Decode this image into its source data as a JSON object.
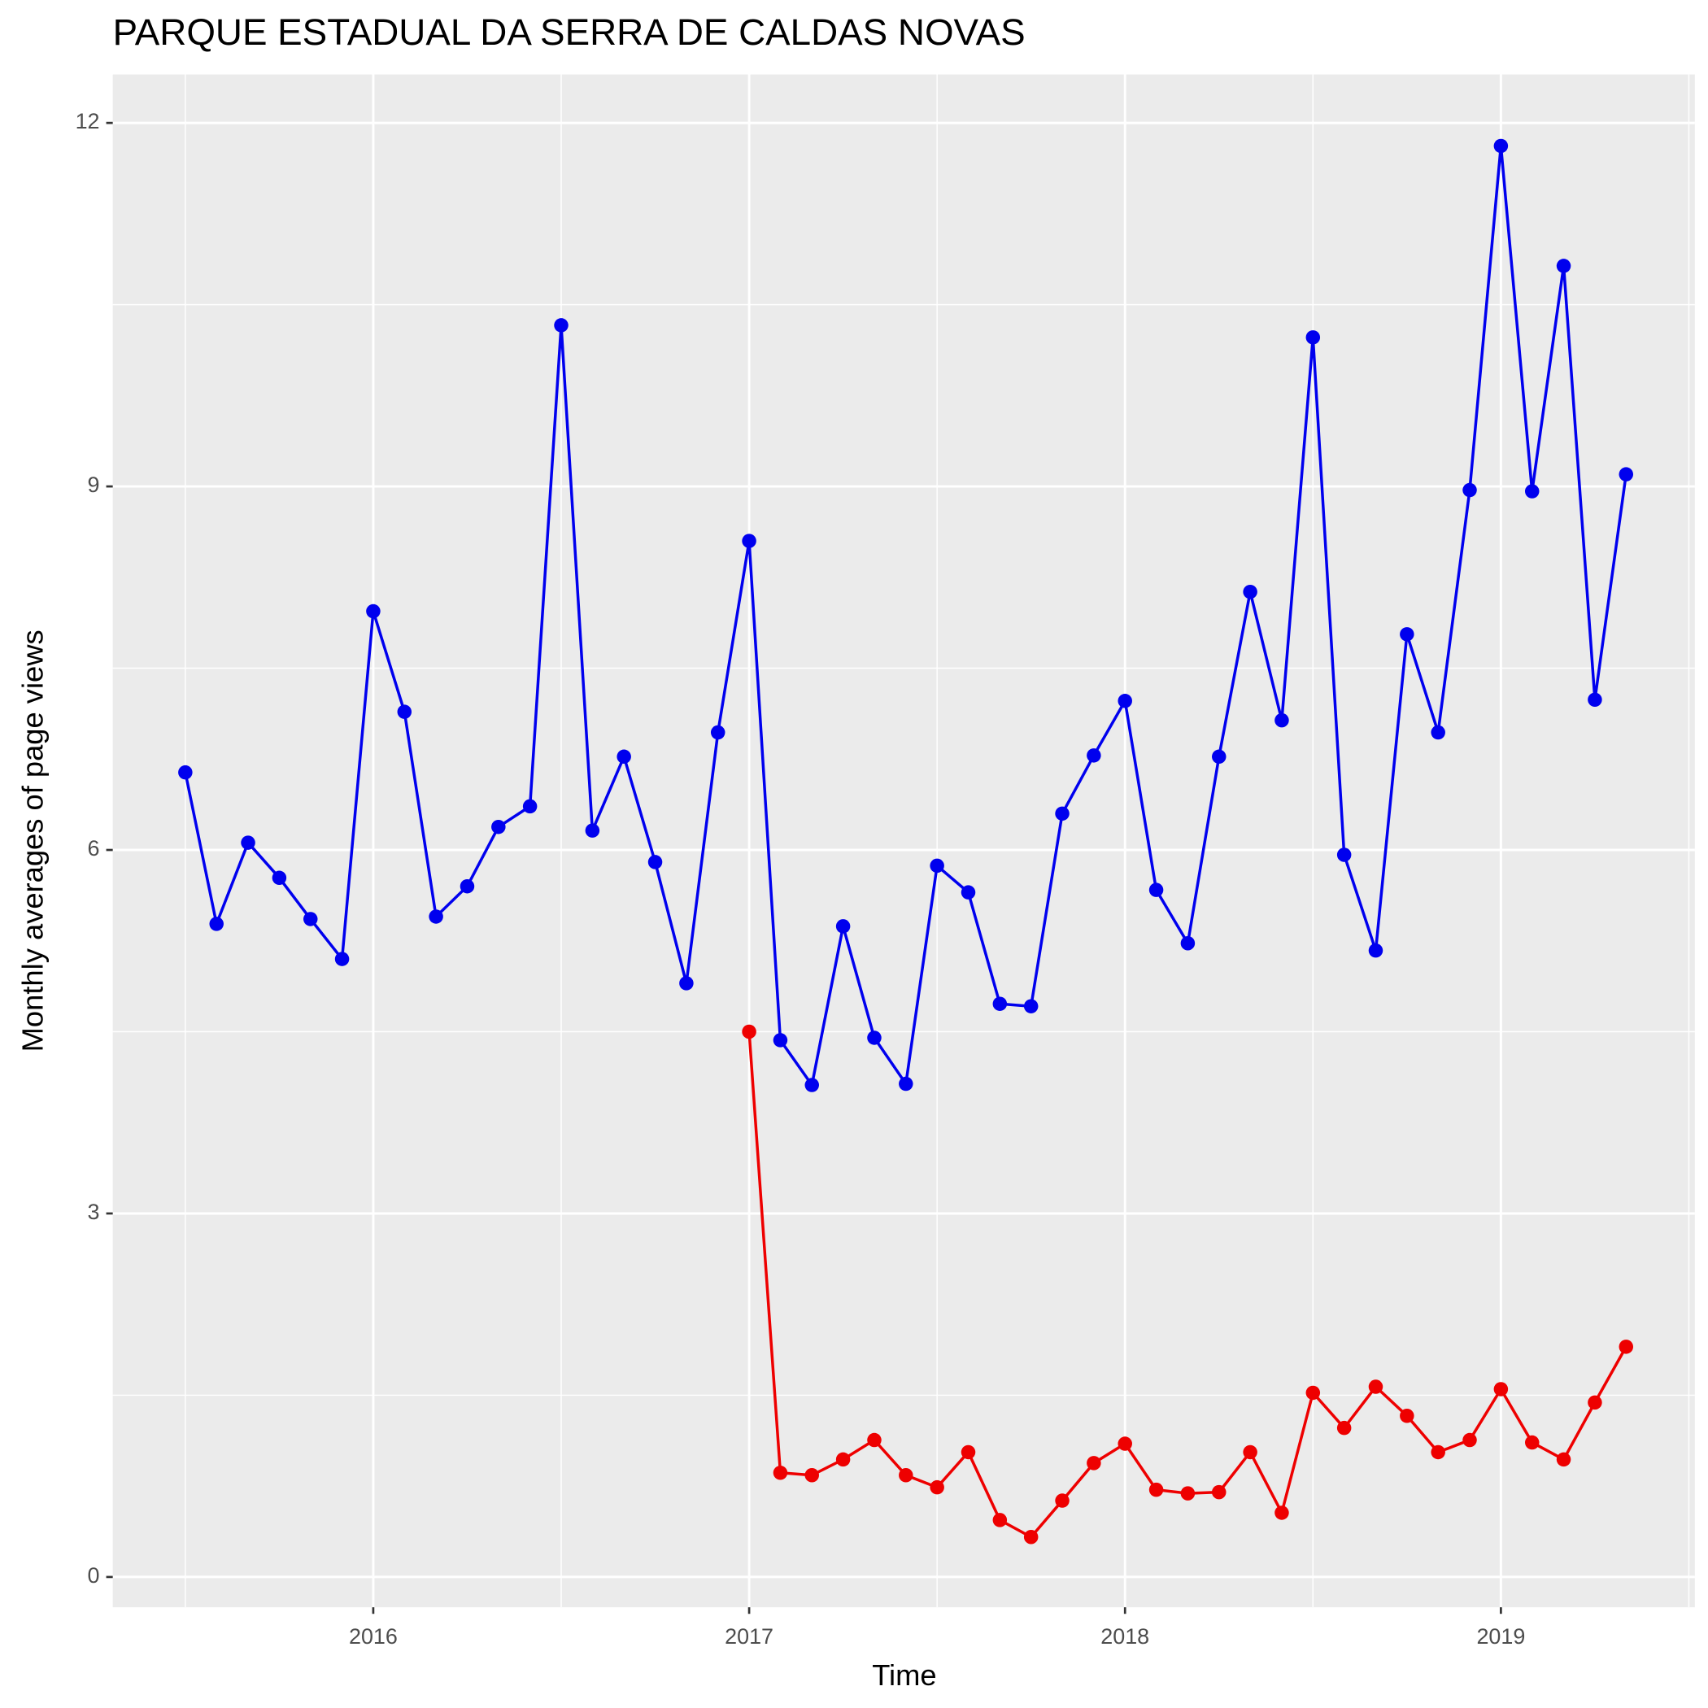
{
  "chart_data": {
    "type": "line",
    "title": "PARQUE ESTADUAL DA SERRA DE CALDAS NOVAS",
    "x_label": "Time",
    "y_label": "Monthly averages of page views",
    "x": [
      2015.5,
      2015.583,
      2015.667,
      2015.75,
      2015.833,
      2015.917,
      2016,
      2016.083,
      2016.167,
      2016.25,
      2016.333,
      2016.417,
      2016.5,
      2016.583,
      2016.667,
      2016.75,
      2016.833,
      2016.917,
      2017,
      2017.083,
      2017.167,
      2017.25,
      2017.333,
      2017.417,
      2017.5,
      2017.583,
      2017.667,
      2017.75,
      2017.833,
      2017.917,
      2018,
      2018.083,
      2018.167,
      2018.25,
      2018.333,
      2018.417,
      2018.5,
      2018.583,
      2018.667,
      2018.75,
      2018.833,
      2018.917,
      2019,
      2019.083,
      2019.167,
      2019.25,
      2019.333
    ],
    "series": [
      {
        "color": "#0000ee",
        "values": [
          6.64,
          5.39,
          6.06,
          5.77,
          5.43,
          5.1,
          7.97,
          7.14,
          5.45,
          5.7,
          6.19,
          6.36,
          10.33,
          6.16,
          6.77,
          5.9,
          4.9,
          6.97,
          8.55,
          4.43,
          4.06,
          5.37,
          4.45,
          4.07,
          5.87,
          5.65,
          4.73,
          4.71,
          6.3,
          6.78,
          7.23,
          5.67,
          5.23,
          6.77,
          8.13,
          7.07,
          10.23,
          5.96,
          5.17,
          7.78,
          6.97,
          8.97,
          11.81,
          8.96,
          10.82,
          7.24,
          9.1
        ]
      },
      {
        "color": "#ee0000",
        "values": [
          null,
          null,
          null,
          null,
          null,
          null,
          null,
          null,
          null,
          null,
          null,
          null,
          null,
          null,
          null,
          null,
          null,
          null,
          4.5,
          0.86,
          0.84,
          0.97,
          1.13,
          0.84,
          0.74,
          1.03,
          0.47,
          0.33,
          0.63,
          0.94,
          1.1,
          0.72,
          0.69,
          0.7,
          1.03,
          0.53,
          1.52,
          1.23,
          1.57,
          1.33,
          1.03,
          1.13,
          1.55,
          1.11,
          0.97,
          1.44,
          1.9
        ]
      }
    ],
    "xlim": [
      2015.307,
      2019.516
    ],
    "xticks": [
      2016,
      2017,
      2018,
      2019
    ],
    "ylim": [
      -0.25,
      12.4
    ],
    "yticks": [
      0,
      3,
      6,
      9,
      12
    ],
    "grid": true
  }
}
